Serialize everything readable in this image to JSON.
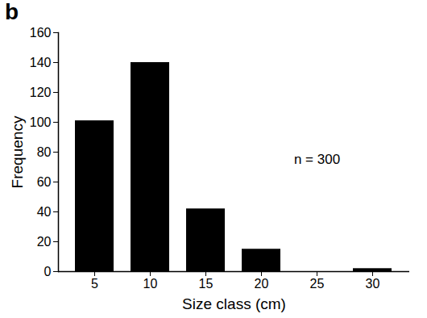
{
  "chart_data": {
    "type": "bar",
    "title": "b",
    "x_label": "Size class (cm)",
    "y_label": "Frequency",
    "categories": [
      "5",
      "10",
      "15",
      "20",
      "25",
      "30"
    ],
    "values": [
      101,
      140,
      42,
      15,
      0,
      2
    ],
    "color": "#000000",
    "ylim": [
      0,
      160
    ],
    "yticks": [
      0,
      20,
      40,
      60,
      80,
      100,
      120,
      140,
      160
    ],
    "grid": false,
    "annotations": [
      "n = 300"
    ]
  }
}
